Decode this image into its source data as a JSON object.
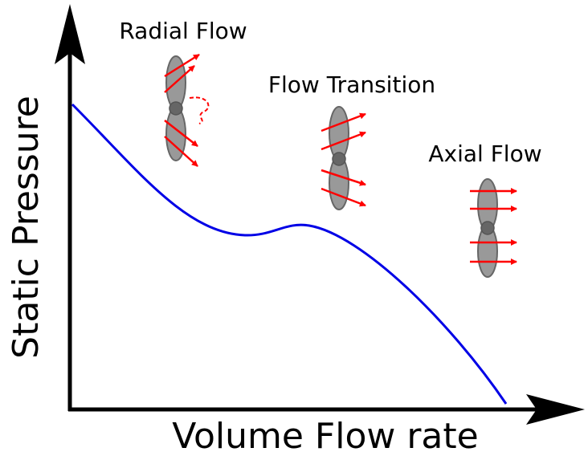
{
  "axes": {
    "y_label": "Static Pressure",
    "x_label": "Volume Flow rate"
  },
  "annotations": [
    {
      "label": "Radial Flow"
    },
    {
      "label": "Flow Transition"
    },
    {
      "label": "Axial Flow"
    }
  ]
}
